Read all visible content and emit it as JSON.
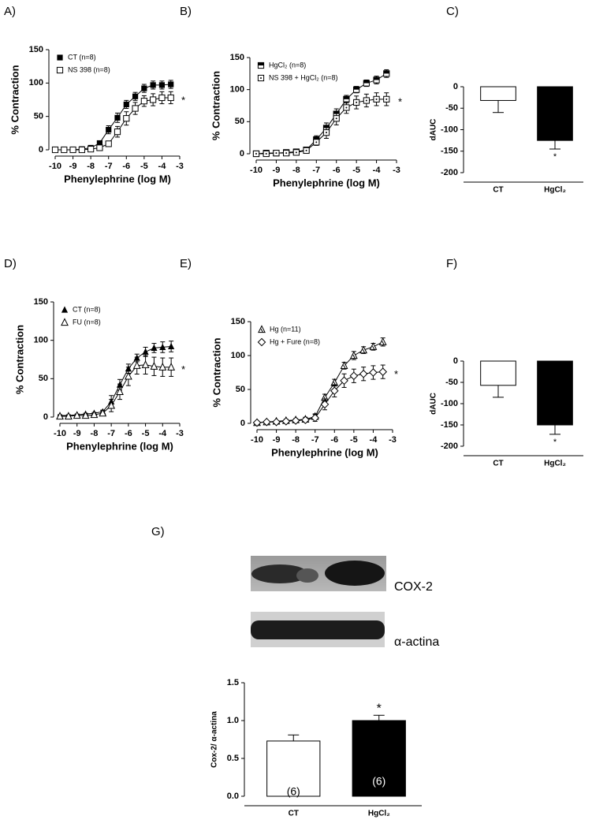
{
  "chart_data": [
    {
      "type": "line",
      "panel": "A)",
      "xlabel": "Phenylephrine (log M)",
      "ylabel": "% Contraction",
      "x": [
        -10,
        -9.5,
        -9,
        -8.5,
        -8,
        -7.5,
        -7,
        -6.5,
        -6,
        -5.5,
        -5,
        -4.5,
        -4,
        -3.5
      ],
      "xlim": [
        -10,
        -3
      ],
      "xticks": [
        -10,
        -9,
        -8,
        -7,
        -6,
        -5,
        -4,
        -3
      ],
      "ylim": [
        0,
        150
      ],
      "yticks": [
        0,
        50,
        100,
        150
      ],
      "legend": "upper left",
      "annotation": "*",
      "series": [
        {
          "name": "CT (n=8)",
          "color": "#000000",
          "marker": "square",
          "values": [
            0,
            0,
            0,
            1,
            3,
            10,
            30,
            48,
            68,
            80,
            92,
            97,
            97,
            98
          ],
          "errors": [
            1,
            1,
            1,
            1,
            2,
            3,
            6,
            7,
            6,
            6,
            6,
            6,
            6,
            6
          ]
        },
        {
          "name": "NS 398 (n=8)",
          "color": "#000000",
          "marker": "open-square",
          "values": [
            0,
            0,
            0,
            0,
            1,
            3,
            9,
            27,
            47,
            62,
            73,
            75,
            78,
            78
          ],
          "errors": [
            1,
            1,
            1,
            1,
            1,
            2,
            4,
            8,
            10,
            9,
            8,
            9,
            9,
            9
          ]
        }
      ]
    },
    {
      "type": "line",
      "panel": "B)",
      "xlabel": "Phenylephrine (log M)",
      "ylabel": "% Contraction",
      "x": [
        -10,
        -9.5,
        -9,
        -8.5,
        -8,
        -7.5,
        -7,
        -6.5,
        -6,
        -5.5,
        -5,
        -4.5,
        -4,
        -3.5
      ],
      "xlim": [
        -10,
        -3
      ],
      "xticks": [
        -10,
        -9,
        -8,
        -7,
        -6,
        -5,
        -4,
        -3
      ],
      "ylim": [
        0,
        150
      ],
      "yticks": [
        0,
        50,
        100,
        150
      ],
      "legend": "upper left",
      "annotation": "*",
      "series": [
        {
          "name": "HgCl₂ (n=8)",
          "color": "#000000",
          "marker": "half-square",
          "values": [
            0,
            1,
            1,
            2,
            3,
            6,
            22,
            40,
            62,
            85,
            100,
            110,
            115,
            125
          ],
          "errors": [
            1,
            1,
            1,
            1,
            1,
            2,
            6,
            8,
            8,
            6,
            5,
            5,
            6,
            6
          ]
        },
        {
          "name": "NS 398 + HgCl₂ (n=8)",
          "color": "#000000",
          "marker": "dot-square",
          "values": [
            0,
            0,
            1,
            1,
            2,
            5,
            18,
            33,
            55,
            72,
            80,
            83,
            85,
            85
          ],
          "errors": [
            1,
            1,
            1,
            1,
            1,
            2,
            5,
            9,
            10,
            9,
            10,
            10,
            10,
            10
          ]
        }
      ]
    },
    {
      "type": "bar",
      "panel": "C)",
      "ylabel": "dAUC",
      "categories": [
        "CT",
        "HgCl₂"
      ],
      "values": [
        -32,
        -125
      ],
      "errors": [
        28,
        20
      ],
      "colors": [
        "#ffffff",
        "#000000"
      ],
      "ylim": [
        -200,
        0
      ],
      "yticks": [
        -200,
        -150,
        -100,
        -50,
        0
      ],
      "annotation": "*"
    },
    {
      "type": "line",
      "panel": "D)",
      "xlabel": "Phenylephrine (log M)",
      "ylabel": "% Contraction",
      "x": [
        -10,
        -9.5,
        -9,
        -8.5,
        -8,
        -7.5,
        -7,
        -6.5,
        -6,
        -5.5,
        -5,
        -4.5,
        -4,
        -3.5
      ],
      "xlim": [
        -10,
        -3
      ],
      "xticks": [
        -10,
        -9,
        -8,
        -7,
        -6,
        -5,
        -4,
        -3
      ],
      "ylim": [
        0,
        150
      ],
      "yticks": [
        0,
        50,
        100,
        150
      ],
      "legend": "upper left",
      "annotation": "*",
      "series": [
        {
          "name": "CT (n=8)",
          "color": "#000000",
          "marker": "triangle",
          "values": [
            2,
            2,
            3,
            4,
            5,
            7,
            20,
            42,
            63,
            77,
            85,
            90,
            91,
            92
          ],
          "errors": [
            1,
            1,
            1,
            1,
            1,
            2,
            8,
            7,
            6,
            5,
            6,
            6,
            7,
            7
          ]
        },
        {
          "name": "FU (n=8)",
          "color": "#000000",
          "marker": "open-triangle",
          "values": [
            1,
            1,
            2,
            2,
            3,
            5,
            15,
            33,
            53,
            67,
            68,
            66,
            65,
            65
          ],
          "errors": [
            1,
            1,
            1,
            1,
            1,
            3,
            8,
            10,
            12,
            11,
            12,
            12,
            12,
            12
          ]
        }
      ]
    },
    {
      "type": "line",
      "panel": "E)",
      "xlabel": "Phenylephrine (log M)",
      "ylabel": "% Contraction",
      "x": [
        -10,
        -9.5,
        -9,
        -8.5,
        -8,
        -7.5,
        -7,
        -6.5,
        -6,
        -5.5,
        -5,
        -4.5,
        -4,
        -3.5
      ],
      "xlim": [
        -10,
        -3
      ],
      "xticks": [
        -10,
        -9,
        -8,
        -7,
        -6,
        -5,
        -4,
        -3
      ],
      "ylim": [
        0,
        150
      ],
      "yticks": [
        0,
        50,
        100,
        150
      ],
      "legend": "upper left",
      "annotation": "*",
      "series": [
        {
          "name": "Hg (n=11)",
          "color": "#000000",
          "marker": "hatch-triangle",
          "values": [
            1,
            2,
            3,
            4,
            5,
            6,
            10,
            38,
            60,
            85,
            100,
            108,
            113,
            120
          ],
          "errors": [
            1,
            1,
            1,
            2,
            2,
            3,
            4,
            5,
            5,
            5,
            6,
            5,
            5,
            6
          ]
        },
        {
          "name": "Hg + Fure (n=8)",
          "color": "#000000",
          "marker": "open-diamond",
          "values": [
            1,
            2,
            2,
            3,
            4,
            5,
            8,
            28,
            48,
            63,
            70,
            73,
            75,
            76
          ],
          "errors": [
            1,
            1,
            1,
            2,
            2,
            3,
            5,
            8,
            9,
            10,
            10,
            10,
            10,
            10
          ]
        }
      ]
    },
    {
      "type": "bar",
      "panel": "F)",
      "ylabel": "dAUC",
      "categories": [
        "CT",
        "HgCl₂"
      ],
      "values": [
        -57,
        -150
      ],
      "errors": [
        28,
        22
      ],
      "colors": [
        "#ffffff",
        "#000000"
      ],
      "ylim": [
        -200,
        0
      ],
      "yticks": [
        -200,
        -150,
        -100,
        -50,
        0
      ],
      "annotation": "*"
    },
    {
      "type": "bar",
      "panel": "G)",
      "ylabel": "Cox-2/ α-actina",
      "categories": [
        "CT",
        "HgCl₂"
      ],
      "values": [
        0.73,
        1.0
      ],
      "errors": [
        0.08,
        0.07
      ],
      "colors": [
        "#ffffff",
        "#000000"
      ],
      "bar_labels": [
        "(6)",
        "(6)"
      ],
      "ylim": [
        0,
        1.5
      ],
      "yticks": [
        {
          "value": 0,
          "label": "0.0"
        },
        0.5,
        {
          "value": 1,
          "label": "1.0"
        },
        1.5
      ],
      "annotation": "*"
    }
  ],
  "blot": {
    "bands": [
      "COX-2",
      "α-actina"
    ]
  }
}
